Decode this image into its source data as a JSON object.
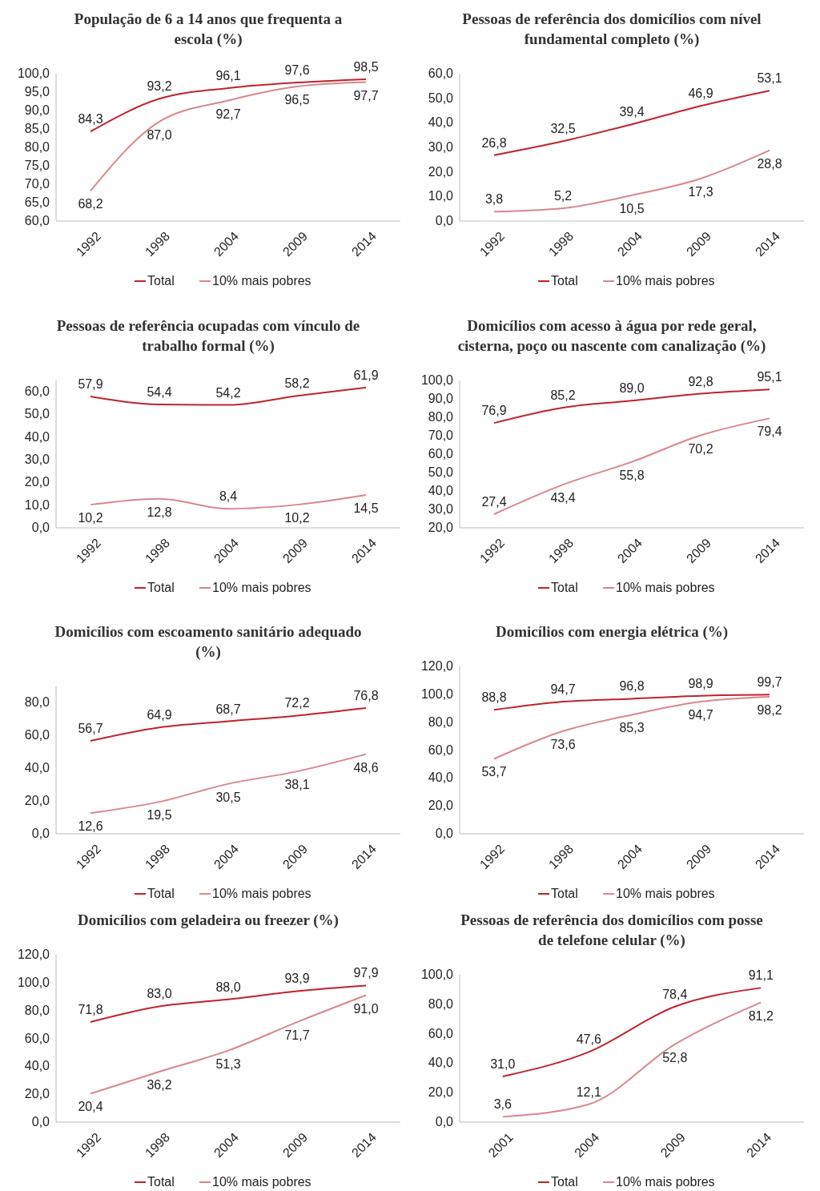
{
  "chart_data": [
    {
      "type": "line",
      "title": "População de 6 a 14 anos que frequenta a escola (%)",
      "categories": [
        "1992",
        "1998",
        "2004",
        "2009",
        "2014"
      ],
      "ylim": [
        60,
        100
      ],
      "yticks": [
        {
          "value": 60,
          "label": "60,0"
        },
        {
          "value": 65,
          "label": "65,0"
        },
        {
          "value": 70,
          "label": "70,0"
        },
        {
          "value": 75,
          "label": "75,0"
        },
        {
          "value": 80,
          "label": "80,0"
        },
        {
          "value": 85,
          "label": "85,0"
        },
        {
          "value": 90,
          "label": "90,0"
        },
        {
          "value": 95,
          "label": "95,0"
        },
        {
          "value": 100,
          "label": "100,0"
        }
      ],
      "legend": "bottom",
      "series": [
        {
          "name": "Total",
          "color": "#c0232c",
          "values": [
            84.3,
            93.2,
            96.1,
            97.6,
            98.5
          ],
          "value_labels": [
            "84,3",
            "93,2",
            "96,1",
            "97,6",
            "98,5"
          ]
        },
        {
          "name": "10% mais pobres",
          "color": "#d9878b",
          "values": [
            68.2,
            87.0,
            92.7,
            96.5,
            97.7
          ],
          "value_labels": [
            "68,2",
            "87,0",
            "92,7",
            "96,5",
            "97,7"
          ]
        }
      ]
    },
    {
      "type": "line",
      "title": "Pessoas de referência dos domicílios com nível fundamental completo (%)",
      "categories": [
        "1992",
        "1998",
        "2004",
        "2009",
        "2014"
      ],
      "ylim": [
        0,
        60
      ],
      "yticks": [
        {
          "value": 0,
          "label": "0,0"
        },
        {
          "value": 10,
          "label": "10,0"
        },
        {
          "value": 20,
          "label": "20,0"
        },
        {
          "value": 30,
          "label": "30,0"
        },
        {
          "value": 40,
          "label": "40,0"
        },
        {
          "value": 50,
          "label": "50,0"
        },
        {
          "value": 60,
          "label": "60,0"
        }
      ],
      "legend": "bottom",
      "series": [
        {
          "name": "Total",
          "color": "#c0232c",
          "values": [
            26.8,
            32.5,
            39.4,
            46.9,
            53.1
          ],
          "value_labels": [
            "26,8",
            "32,5",
            "39,4",
            "46,9",
            "53,1"
          ]
        },
        {
          "name": "10% mais pobres",
          "color": "#d9878b",
          "values": [
            3.8,
            5.2,
            10.5,
            17.3,
            28.8
          ],
          "value_labels": [
            "3,8",
            "5,2",
            "10,5",
            "17,3",
            "28,8"
          ]
        }
      ]
    },
    {
      "type": "line",
      "title": "Pessoas de referência ocupadas com vínculo de trabalho formal (%)",
      "categories": [
        "1992",
        "1998",
        "2004",
        "2009",
        "2014"
      ],
      "ylim": [
        0,
        65
      ],
      "yticks": [
        {
          "value": 0,
          "label": "0,0"
        },
        {
          "value": 10,
          "label": "10,0"
        },
        {
          "value": 20,
          "label": "20,0"
        },
        {
          "value": 30,
          "label": "30,0"
        },
        {
          "value": 40,
          "label": "40,0"
        },
        {
          "value": 50,
          "label": "50,0"
        },
        {
          "value": 60,
          "label": "60,0"
        }
      ],
      "legend": "bottom",
      "series": [
        {
          "name": "Total",
          "color": "#c0232c",
          "values": [
            57.9,
            54.4,
            54.2,
            58.2,
            61.9
          ],
          "value_labels": [
            "57,9",
            "54,4",
            "54,2",
            "58,2",
            "61,9"
          ]
        },
        {
          "name": "10% mais pobres",
          "color": "#d9878b",
          "values": [
            10.2,
            12.8,
            8.4,
            10.2,
            14.5
          ],
          "value_labels": [
            "10,2",
            "12,8",
            "8,4",
            "10,2",
            "14,5"
          ]
        }
      ]
    },
    {
      "type": "line",
      "title": "Domicílios com acesso à água por rede geral, cisterna, poço ou nascente com canalização (%)",
      "categories": [
        "1992",
        "1998",
        "2004",
        "2009",
        "2014"
      ],
      "ylim": [
        20,
        100
      ],
      "yticks": [
        {
          "value": 20,
          "label": "20,0"
        },
        {
          "value": 30,
          "label": "30,0"
        },
        {
          "value": 40,
          "label": "40,0"
        },
        {
          "value": 50,
          "label": "50,0"
        },
        {
          "value": 60,
          "label": "60,0"
        },
        {
          "value": 70,
          "label": "70,0"
        },
        {
          "value": 80,
          "label": "80,0"
        },
        {
          "value": 90,
          "label": "90,0"
        },
        {
          "value": 100,
          "label": "100,0"
        }
      ],
      "legend": "bottom",
      "series": [
        {
          "name": "Total",
          "color": "#c0232c",
          "values": [
            76.9,
            85.2,
            89.0,
            92.8,
            95.1
          ],
          "value_labels": [
            "76,9",
            "85,2",
            "89,0",
            "92,8",
            "95,1"
          ]
        },
        {
          "name": "10% mais pobres",
          "color": "#d9878b",
          "values": [
            27.4,
            43.4,
            55.8,
            70.2,
            79.4
          ],
          "value_labels": [
            "27,4",
            "43,4",
            "55,8",
            "70,2",
            "79,4"
          ]
        }
      ]
    },
    {
      "type": "line",
      "title": "Domicílios com escoamento sanitário adequado (%)",
      "categories": [
        "1992",
        "1998",
        "2004",
        "2009",
        "2014"
      ],
      "ylim": [
        0,
        90
      ],
      "yticks": [
        {
          "value": 0,
          "label": "0,0"
        },
        {
          "value": 20,
          "label": "20,0"
        },
        {
          "value": 40,
          "label": "40,0"
        },
        {
          "value": 60,
          "label": "60,0"
        },
        {
          "value": 80,
          "label": "80,0"
        }
      ],
      "legend": "bottom",
      "series": [
        {
          "name": "Total",
          "color": "#c0232c",
          "values": [
            56.7,
            64.9,
            68.7,
            72.2,
            76.8
          ],
          "value_labels": [
            "56,7",
            "64,9",
            "68,7",
            "72,2",
            "76,8"
          ]
        },
        {
          "name": "10% mais pobres",
          "color": "#d9878b",
          "values": [
            12.6,
            19.5,
            30.5,
            38.1,
            48.6
          ],
          "value_labels": [
            "12,6",
            "19,5",
            "30,5",
            "38,1",
            "48,6"
          ]
        }
      ]
    },
    {
      "type": "line",
      "title": "Domicílios com energia elétrica (%)",
      "categories": [
        "1992",
        "1998",
        "2004",
        "2009",
        "2014"
      ],
      "ylim": [
        0,
        120
      ],
      "yticks": [
        {
          "value": 0,
          "label": "0,0"
        },
        {
          "value": 20,
          "label": "20,0"
        },
        {
          "value": 40,
          "label": "40,0"
        },
        {
          "value": 60,
          "label": "60,0"
        },
        {
          "value": 80,
          "label": "80,0"
        },
        {
          "value": 100,
          "label": "100,0"
        },
        {
          "value": 120,
          "label": "120,0"
        }
      ],
      "legend": "bottom",
      "series": [
        {
          "name": "Total",
          "color": "#c0232c",
          "values": [
            88.8,
            94.7,
            96.8,
            98.9,
            99.7
          ],
          "value_labels": [
            "88,8",
            "94,7",
            "96,8",
            "98,9",
            "99,7"
          ]
        },
        {
          "name": "10% mais pobres",
          "color": "#d9878b",
          "values": [
            53.7,
            73.6,
            85.3,
            94.7,
            98.2
          ],
          "value_labels": [
            "53,7",
            "73,6",
            "85,3",
            "94,7",
            "98,2"
          ]
        }
      ]
    },
    {
      "type": "line",
      "title": "Domicílios com geladeira ou freezer (%)",
      "categories": [
        "1992",
        "1998",
        "2004",
        "2009",
        "2014"
      ],
      "ylim": [
        0,
        120
      ],
      "yticks": [
        {
          "value": 0,
          "label": "0,0"
        },
        {
          "value": 20,
          "label": "20,0"
        },
        {
          "value": 40,
          "label": "40,0"
        },
        {
          "value": 60,
          "label": "60,0"
        },
        {
          "value": 80,
          "label": "80,0"
        },
        {
          "value": 100,
          "label": "100,0"
        },
        {
          "value": 120,
          "label": "120,0"
        }
      ],
      "legend": "bottom",
      "series": [
        {
          "name": "Total",
          "color": "#c0232c",
          "values": [
            71.8,
            83.0,
            88.0,
            93.9,
            97.9
          ],
          "value_labels": [
            "71,8",
            "83,0",
            "88,0",
            "93,9",
            "97,9"
          ]
        },
        {
          "name": "10% mais pobres",
          "color": "#d9878b",
          "values": [
            20.4,
            36.2,
            51.3,
            71.7,
            91.0
          ],
          "value_labels": [
            "20,4",
            "36,2",
            "51,3",
            "71,7",
            "91,0"
          ]
        }
      ]
    },
    {
      "type": "line",
      "title": "Pessoas de referência dos domicílios com posse de telefone celular (%)",
      "categories": [
        "2001",
        "2004",
        "2009",
        "2014"
      ],
      "ylim": [
        0,
        100
      ],
      "yticks": [
        {
          "value": 0,
          "label": "0,0"
        },
        {
          "value": 20,
          "label": "20,0"
        },
        {
          "value": 40,
          "label": "40,0"
        },
        {
          "value": 60,
          "label": "60,0"
        },
        {
          "value": 80,
          "label": "80,0"
        },
        {
          "value": 100,
          "label": "100,0"
        }
      ],
      "legend": "bottom",
      "series": [
        {
          "name": "Total",
          "color": "#c0232c",
          "values": [
            31.0,
            47.6,
            78.4,
            91.1
          ],
          "value_labels": [
            "31,0",
            "47,6",
            "78,4",
            "91,1"
          ]
        },
        {
          "name": "10% mais pobres",
          "color": "#d9878b",
          "values": [
            3.6,
            12.1,
            52.8,
            81.2
          ],
          "value_labels": [
            "3,6",
            "12,1",
            "52,8",
            "81,2"
          ]
        }
      ]
    }
  ]
}
